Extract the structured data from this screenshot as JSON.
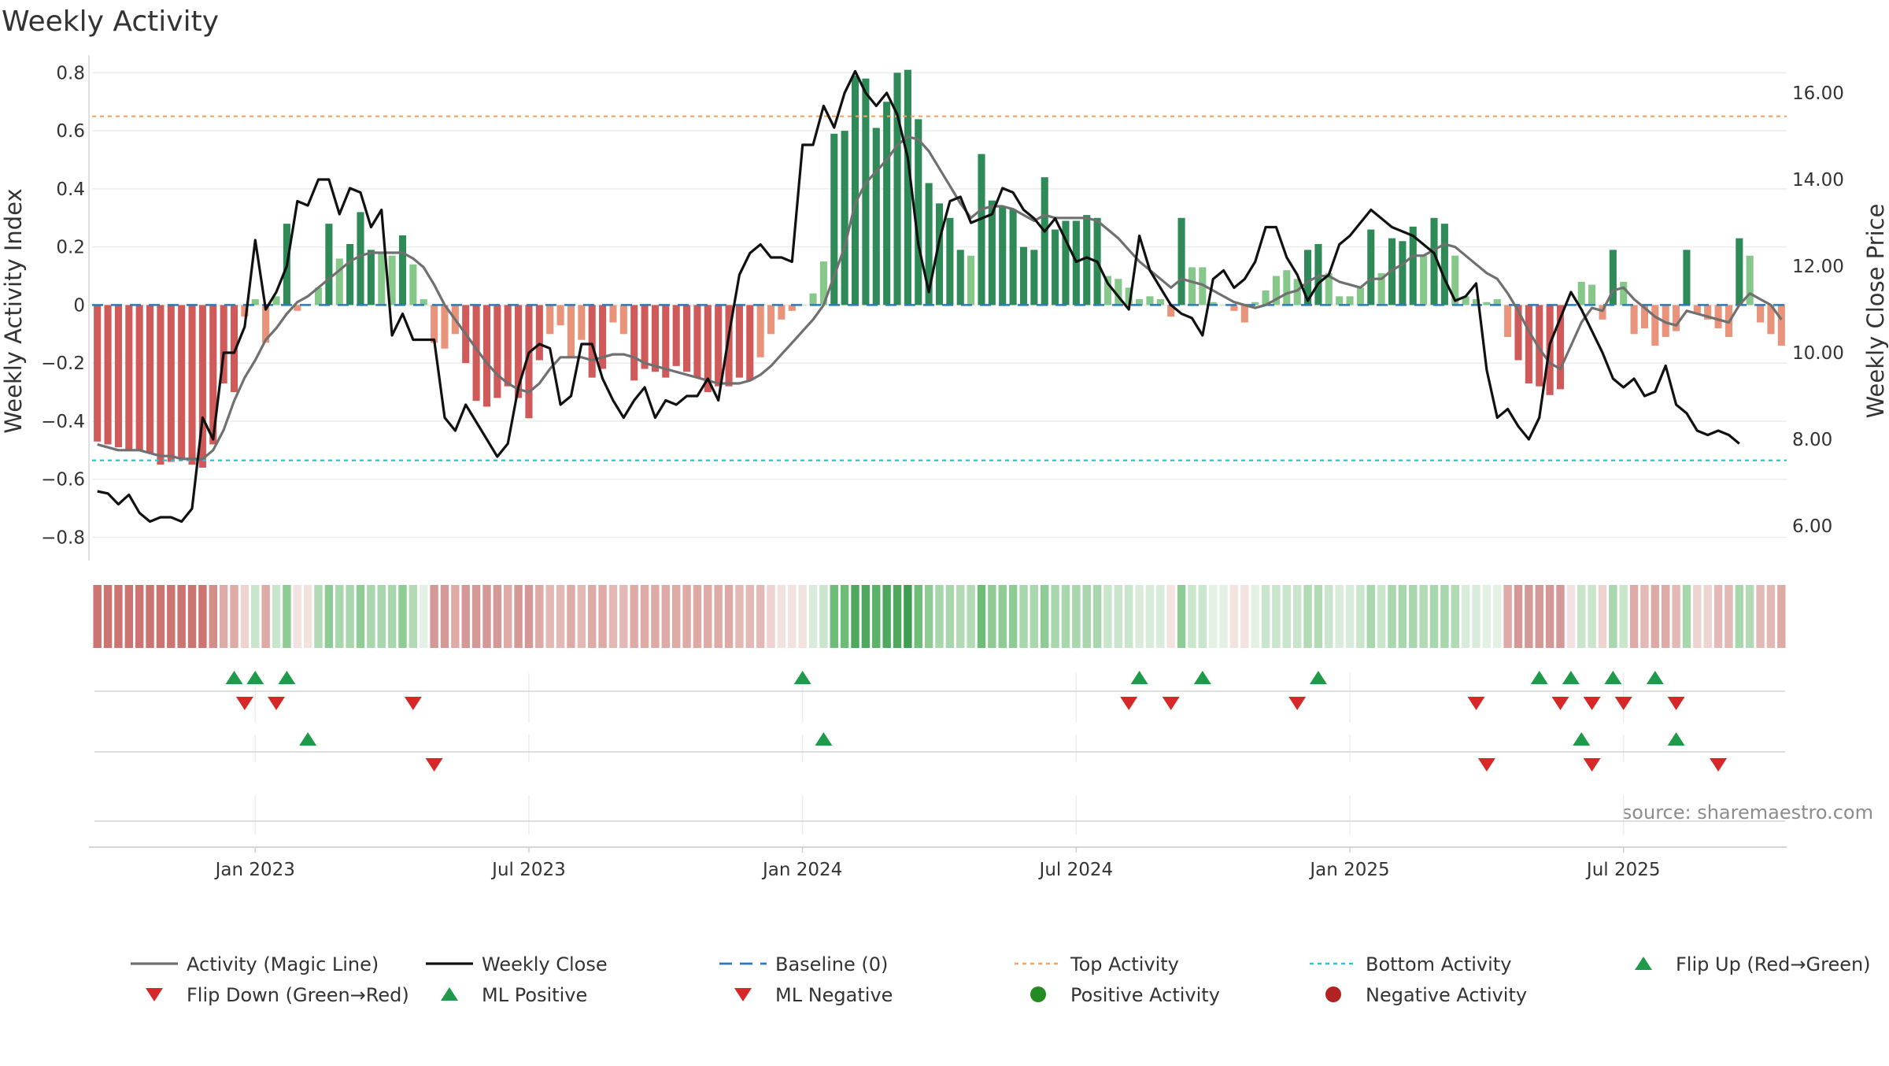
{
  "chart_data": {
    "type": "bar",
    "title": "Weekly Activity",
    "ylabel_left": "Weekly Activity Index",
    "ylabel_right": "Weekly Close Price",
    "source": "source: sharemaestro.com",
    "ylim_left": [
      -0.88,
      0.82
    ],
    "ylim_right": [
      5.2,
      16.6
    ],
    "y_ticks_left": [
      {
        "value": 0.8,
        "label": "0.8"
      },
      {
        "value": 0.6,
        "label": "0.6"
      },
      {
        "value": 0.4,
        "label": "0.4"
      },
      {
        "value": 0.2,
        "label": "0.2"
      },
      {
        "value": 0,
        "label": "0"
      },
      {
        "value": -0.2,
        "label": "−0.2"
      },
      {
        "value": -0.4,
        "label": "−0.4"
      },
      {
        "value": -0.6,
        "label": "−0.6"
      },
      {
        "value": -0.8,
        "label": "−0.8"
      }
    ],
    "y_ticks_right": [
      {
        "value": 16,
        "label": "16.00"
      },
      {
        "value": 14,
        "label": "14.00"
      },
      {
        "value": 12,
        "label": "12.00"
      },
      {
        "value": 10,
        "label": "10.00"
      },
      {
        "value": 8,
        "label": "8.00"
      },
      {
        "value": 6,
        "label": "6.00"
      }
    ],
    "x_ticks": [
      {
        "week": 15,
        "label": "Jan 2023"
      },
      {
        "week": 41,
        "label": "Jul 2023"
      },
      {
        "week": 67,
        "label": "Jan 2024"
      },
      {
        "week": 93,
        "label": "Jul 2024"
      },
      {
        "week": 119,
        "label": "Jan 2025"
      },
      {
        "week": 145,
        "label": "Jul 2025"
      }
    ],
    "top_activity": 0.65,
    "bottom_activity": -0.535,
    "baseline": 0,
    "activity": [
      -0.47,
      -0.48,
      -0.49,
      -0.5,
      -0.5,
      -0.51,
      -0.55,
      -0.54,
      -0.53,
      -0.55,
      -0.56,
      -0.48,
      -0.27,
      -0.3,
      -0.04,
      0.02,
      -0.13,
      0.03,
      0.28,
      -0.02,
      0.0,
      0.06,
      0.28,
      0.16,
      0.21,
      0.32,
      0.19,
      0.18,
      0.17,
      0.24,
      0.14,
      0.02,
      -0.13,
      -0.15,
      -0.1,
      -0.2,
      -0.33,
      -0.35,
      -0.32,
      -0.28,
      -0.32,
      -0.39,
      -0.19,
      -0.1,
      -0.07,
      -0.18,
      -0.12,
      -0.25,
      -0.22,
      -0.06,
      -0.1,
      -0.26,
      -0.22,
      -0.23,
      -0.25,
      -0.21,
      -0.23,
      -0.25,
      -0.3,
      -0.28,
      -0.28,
      -0.25,
      -0.26,
      -0.18,
      -0.1,
      -0.05,
      -0.02,
      0.0,
      0.04,
      0.15,
      0.59,
      0.6,
      0.79,
      0.78,
      0.61,
      0.7,
      0.8,
      0.81,
      0.64,
      0.42,
      0.35,
      0.3,
      0.19,
      0.17,
      0.52,
      0.36,
      0.34,
      0.33,
      0.2,
      0.19,
      0.44,
      0.26,
      0.29,
      0.29,
      0.31,
      0.3,
      0.1,
      0.09,
      0.06,
      0.02,
      0.03,
      0.02,
      -0.04,
      0.3,
      0.13,
      0.13,
      0.01,
      0.0,
      -0.02,
      -0.06,
      0.01,
      0.05,
      0.1,
      0.12,
      0.09,
      0.19,
      0.21,
      0.11,
      0.03,
      0.03,
      0.06,
      0.26,
      0.11,
      0.23,
      0.22,
      0.27,
      0.17,
      0.3,
      0.28,
      0.17,
      0.03,
      0.02,
      0.01,
      0.02,
      -0.11,
      -0.19,
      -0.27,
      -0.28,
      -0.31,
      -0.29,
      0.0,
      0.08,
      0.07,
      -0.05,
      0.19,
      0.08,
      -0.1,
      -0.08,
      -0.14,
      -0.11,
      -0.09,
      0.19,
      -0.03,
      -0.05,
      -0.08,
      -0.11,
      0.23,
      0.17,
      -0.06,
      -0.1,
      -0.14
    ],
    "magic_line": [
      -0.48,
      -0.49,
      -0.5,
      -0.5,
      -0.5,
      -0.51,
      -0.52,
      -0.52,
      -0.53,
      -0.53,
      -0.53,
      -0.5,
      -0.43,
      -0.33,
      -0.25,
      -0.19,
      -0.12,
      -0.08,
      -0.03,
      0.01,
      0.03,
      0.06,
      0.09,
      0.12,
      0.15,
      0.17,
      0.18,
      0.18,
      0.18,
      0.18,
      0.16,
      0.13,
      0.07,
      0.0,
      -0.05,
      -0.1,
      -0.15,
      -0.2,
      -0.24,
      -0.27,
      -0.29,
      -0.3,
      -0.27,
      -0.22,
      -0.18,
      -0.18,
      -0.18,
      -0.19,
      -0.18,
      -0.17,
      -0.17,
      -0.18,
      -0.2,
      -0.21,
      -0.22,
      -0.23,
      -0.24,
      -0.25,
      -0.26,
      -0.27,
      -0.27,
      -0.27,
      -0.26,
      -0.24,
      -0.21,
      -0.17,
      -0.13,
      -0.09,
      -0.05,
      0.0,
      0.1,
      0.2,
      0.35,
      0.42,
      0.46,
      0.5,
      0.55,
      0.58,
      0.57,
      0.53,
      0.47,
      0.41,
      0.35,
      0.3,
      0.33,
      0.34,
      0.34,
      0.33,
      0.31,
      0.29,
      0.31,
      0.3,
      0.3,
      0.3,
      0.3,
      0.29,
      0.26,
      0.23,
      0.19,
      0.15,
      0.12,
      0.09,
      0.06,
      0.09,
      0.08,
      0.07,
      0.05,
      0.03,
      0.01,
      0.0,
      -0.01,
      0.0,
      0.02,
      0.04,
      0.05,
      0.08,
      0.1,
      0.1,
      0.08,
      0.07,
      0.06,
      0.09,
      0.09,
      0.12,
      0.14,
      0.17,
      0.17,
      0.19,
      0.21,
      0.2,
      0.17,
      0.14,
      0.11,
      0.09,
      0.04,
      -0.02,
      -0.09,
      -0.15,
      -0.2,
      -0.22,
      -0.14,
      -0.06,
      -0.01,
      -0.02,
      0.05,
      0.06,
      0.02,
      -0.01,
      -0.04,
      -0.06,
      -0.07,
      -0.02,
      -0.03,
      -0.04,
      -0.05,
      -0.06,
      0.0,
      0.04,
      0.02,
      0.0,
      -0.05
    ],
    "weekly_close": [
      6.8,
      6.75,
      6.5,
      6.72,
      6.3,
      6.1,
      6.2,
      6.2,
      6.1,
      6.4,
      8.5,
      8,
      10,
      10,
      10.6,
      12.6,
      11,
      11.4,
      12,
      13.5,
      13.4,
      14,
      14,
      13.2,
      13.8,
      13.7,
      12.9,
      13.3,
      10.4,
      10.9,
      10.3,
      10.3,
      10.3,
      8.5,
      8.2,
      8.8,
      8.4,
      8,
      7.6,
      7.9,
      9.2,
      10,
      10.2,
      10.1,
      8.8,
      9,
      10.2,
      10.2,
      9.4,
      8.9,
      8.5,
      8.9,
      9.2,
      8.5,
      8.9,
      8.8,
      9,
      9,
      9.4,
      8.9,
      10.4,
      11.8,
      12.3,
      12.5,
      12.2,
      12.2,
      12.1,
      14.8,
      14.8,
      15.7,
      15.2,
      16,
      16.5,
      16,
      15.7,
      16,
      15.5,
      14.5,
      12.5,
      11.4,
      12.6,
      13.5,
      13.6,
      13,
      13.1,
      13.2,
      13.8,
      13.7,
      13.3,
      13.1,
      12.8,
      13.1,
      12.6,
      12.1,
      12.2,
      12.1,
      11.6,
      11.3,
      11,
      12.7,
      11.9,
      11.5,
      11.1,
      10.9,
      10.8,
      10.4,
      11.7,
      11.9,
      11.5,
      11.7,
      12.1,
      12.9,
      12.9,
      12.2,
      11.8,
      11.2,
      11.6,
      11.8,
      12.5,
      12.7,
      13,
      13.3,
      13.1,
      12.9,
      12.8,
      12.7,
      12.5,
      12.3,
      11.7,
      11.2,
      11.3,
      11.6,
      9.6,
      8.5,
      8.7,
      8.3,
      8,
      8.5,
      10.2,
      10.8,
      11.4,
      11,
      10.5,
      10,
      9.4,
      9.2,
      9.4,
      9,
      9.1,
      9.7,
      8.8,
      8.6,
      8.2,
      8.1,
      8.2,
      8.1,
      7.9
    ],
    "state_strip_colors": [
      "#cb7472",
      "#cb7472",
      "#cb7472",
      "#cb7472",
      "#cb7472",
      "#cb7472",
      "#cb7472",
      "#cb7472",
      "#cb7472",
      "#cb7472",
      "#cb7472",
      "#d48d89",
      "#deaaa6",
      "#deaaa6",
      "#edd4d0",
      "#c9e5cb",
      "#deaaa6",
      "#c9e5cb",
      "#8ecb95",
      "#f2e3e0",
      "#f2e3e0",
      "#b1dab5",
      "#8ecb95",
      "#a8d6ad",
      "#a8d6ad",
      "#8ecb95",
      "#a8d6ad",
      "#a8d6ad",
      "#a8d6ad",
      "#8ecb95",
      "#b1dab5",
      "#e3f1e4",
      "#d49996",
      "#d49996",
      "#deaaa6",
      "#d49996",
      "#d49996",
      "#d49996",
      "#d49996",
      "#deaaa6",
      "#d49996",
      "#d49996",
      "#deaaa6",
      "#e3b9b6",
      "#e3b9b6",
      "#deaaa6",
      "#e3b9b6",
      "#deaaa6",
      "#deaaa6",
      "#e3b9b6",
      "#e3b9b6",
      "#deaaa6",
      "#deaaa6",
      "#deaaa6",
      "#deaaa6",
      "#deaaa6",
      "#deaaa6",
      "#deaaa6",
      "#deaaa6",
      "#deaaa6",
      "#deaaa6",
      "#e3b9b6",
      "#e3b9b6",
      "#e3b9b6",
      "#edd4d0",
      "#f2e3e0",
      "#f2e3e0",
      "#f2e3e0",
      "#d9ecdb",
      "#c9e5cb",
      "#6dbd79",
      "#6dbd79",
      "#4ea85d",
      "#4ea85d",
      "#5cb268",
      "#4ea85d",
      "#4ea85d",
      "#3f9e51",
      "#6dbd79",
      "#8ecb95",
      "#a8d6ad",
      "#a8d6ad",
      "#b1dab5",
      "#b1dab5",
      "#6dbd79",
      "#8ecb95",
      "#8ecb95",
      "#8ecb95",
      "#a8d6ad",
      "#a8d6ad",
      "#8ecb95",
      "#a8d6ad",
      "#a8d6ad",
      "#a8d6ad",
      "#a8d6ad",
      "#a8d6ad",
      "#c9e5cb",
      "#c9e5cb",
      "#c9e5cb",
      "#d9ecdb",
      "#d9ecdb",
      "#d9ecdb",
      "#f2e3e0",
      "#8ecb95",
      "#c9e5cb",
      "#c9e5cb",
      "#e3f1e4",
      "#e3f1e4",
      "#f2e3e0",
      "#f2e3e0",
      "#e3f1e4",
      "#c9e5cb",
      "#c9e5cb",
      "#c9e5cb",
      "#c9e5cb",
      "#b1dab5",
      "#b1dab5",
      "#c9e5cb",
      "#d9ecdb",
      "#d9ecdb",
      "#c9e5cb",
      "#a8d6ad",
      "#c9e5cb",
      "#a8d6ad",
      "#a8d6ad",
      "#a8d6ad",
      "#b1dab5",
      "#a8d6ad",
      "#a8d6ad",
      "#b1dab5",
      "#d9ecdb",
      "#d9ecdb",
      "#e3f1e4",
      "#e3f1e4",
      "#deaaa6",
      "#d49996",
      "#d49996",
      "#d49996",
      "#d49996",
      "#d49996",
      "#f2e3e0",
      "#c9e5cb",
      "#c9e5cb",
      "#edd4d0",
      "#a8d6ad",
      "#c9e5cb",
      "#deaaa6",
      "#e3b9b6",
      "#deaaa6",
      "#deaaa6",
      "#e3b9b6",
      "#a8d6ad",
      "#edd4d0",
      "#edd4d0",
      "#e3b9b6",
      "#e3b9b6",
      "#a8d6ad",
      "#b1dab5",
      "#e3b9b6",
      "#e3b9b6",
      "#deaaa6"
    ],
    "flip_up_weeks": [
      13,
      15,
      18,
      67,
      99,
      105,
      116,
      137,
      140,
      144,
      148
    ],
    "flip_down_weeks": [
      14,
      17,
      30,
      98,
      102,
      114,
      131,
      139,
      142,
      145,
      150
    ],
    "ml_positive_weeks": [
      20,
      69,
      141,
      150
    ],
    "ml_negative_weeks": [
      32,
      132,
      142,
      154
    ],
    "colors": {
      "green_dark": "#2e8b57",
      "green_light": "#86c88a",
      "red_dark": "#d0595a",
      "red_light": "#e8937a",
      "magic_line": "#707070",
      "weekly_close": "#111111",
      "baseline": "#2b7bb9",
      "top_activity": "#f4a460",
      "bottom_activity": "#2ec4cc",
      "flip_up": "#1f9a4a",
      "flip_down": "#d62828",
      "positive_activity": "#228b22",
      "negative_activity": "#b22222"
    },
    "legend": [
      {
        "key": "magic_line",
        "label": "Activity (Magic Line)",
        "symbol": "line"
      },
      {
        "key": "weekly_close",
        "label": "Weekly Close",
        "symbol": "line"
      },
      {
        "key": "baseline",
        "label": "Baseline (0)",
        "symbol": "dash"
      },
      {
        "key": "top_activity",
        "label": "Top Activity",
        "symbol": "dot"
      },
      {
        "key": "bottom_activity",
        "label": "Bottom Activity",
        "symbol": "dot"
      },
      {
        "key": "flip_up",
        "label": "Flip Up (Red→Green)",
        "symbol": "triangle-up"
      },
      {
        "key": "flip_down",
        "label": "Flip Down (Green→Red)",
        "symbol": "triangle-down"
      },
      {
        "key": "flip_up",
        "label": "ML Positive",
        "symbol": "triangle-up"
      },
      {
        "key": "flip_down",
        "label": "ML Negative",
        "symbol": "triangle-down"
      },
      {
        "key": "positive_activity",
        "label": "Positive Activity",
        "symbol": "circle"
      },
      {
        "key": "negative_activity",
        "label": "Negative Activity",
        "symbol": "circle"
      }
    ]
  }
}
